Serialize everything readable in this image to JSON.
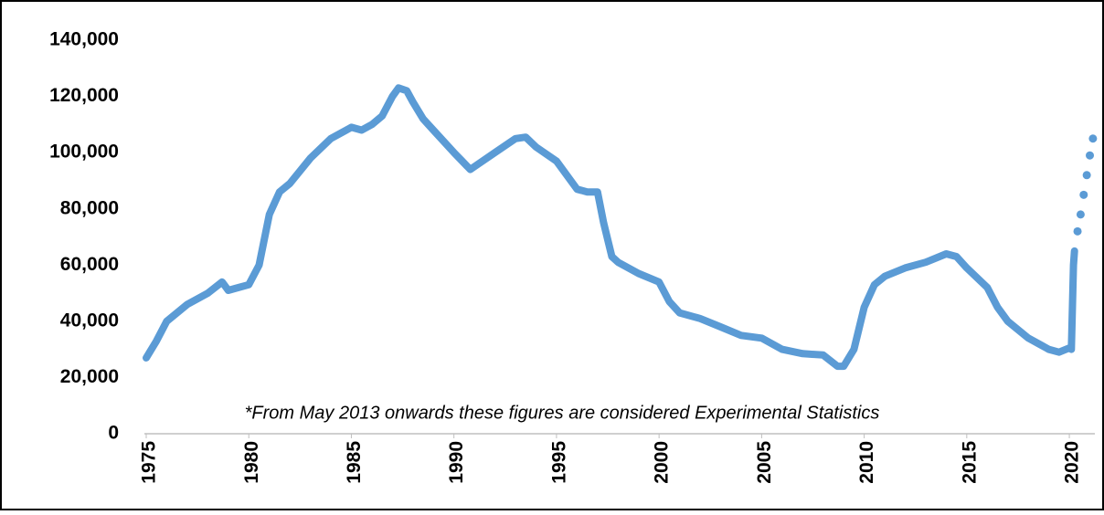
{
  "chart_data": {
    "type": "line",
    "annotation": "*From May 2013 onwards these figures are considered Experimental Statistics",
    "xlim": [
      1975,
      2021.2
    ],
    "xticks": [
      1975,
      1980,
      1985,
      1990,
      1995,
      2000,
      2005,
      2010,
      2015,
      2020
    ],
    "ylim": [
      0,
      140000
    ],
    "yticks": [
      0,
      {
        "value": 20000,
        "label": "20,000"
      },
      {
        "value": 40000,
        "label": "40,000"
      },
      {
        "value": 60000,
        "label": "60,000"
      },
      {
        "value": 80000,
        "label": "80,000"
      },
      {
        "value": 100000,
        "label": "100,000"
      },
      {
        "value": 120000,
        "label": "120,000"
      },
      {
        "value": 140000,
        "label": "140,000"
      }
    ],
    "grid": false,
    "series": [
      {
        "color": "#5b9bd5",
        "style": "solid",
        "x": [
          1975,
          1975.5,
          1976,
          1977,
          1978,
          1978.7,
          1979,
          1979.5,
          1980,
          1980.5,
          1981,
          1981.5,
          1982,
          1983,
          1984,
          1985,
          1985.5,
          1986,
          1986.5,
          1987,
          1987.3,
          1987.7,
          1988,
          1988.5,
          1989,
          1990,
          1990.8,
          1991,
          1992,
          1993,
          1993.5,
          1994,
          1995,
          1996,
          1996.5,
          1997,
          1997.3,
          1997.7,
          1998,
          1999,
          2000,
          2000.5,
          2001,
          2002,
          2003,
          2004,
          2005,
          2006,
          2007,
          2008,
          2008.7,
          2009,
          2009.5,
          2010,
          2010.5,
          2011,
          2012,
          2013,
          2014,
          2014.5,
          2015,
          2016,
          2016.5,
          2017,
          2018,
          2019,
          2019.5,
          2020,
          2020.1,
          2020.2,
          2020.25
        ],
        "values": [
          27000,
          33000,
          40000,
          46000,
          50000,
          54000,
          51000,
          52000,
          53000,
          60000,
          78000,
          86000,
          89000,
          98000,
          105000,
          109000,
          108000,
          110000,
          113000,
          120000,
          123000,
          122000,
          118000,
          112000,
          108000,
          100000,
          94000,
          95000,
          100000,
          105000,
          105500,
          102000,
          97000,
          87000,
          86000,
          86000,
          75000,
          63000,
          61000,
          57000,
          54000,
          47000,
          43000,
          41000,
          38000,
          35000,
          34000,
          30000,
          28500,
          28000,
          24000,
          24000,
          30000,
          45000,
          53000,
          56000,
          59000,
          61000,
          64000,
          63000,
          59000,
          52000,
          45000,
          40000,
          34000,
          30000,
          29000,
          30500,
          30000,
          60000,
          65000
        ]
      },
      {
        "color": "#5b9bd5",
        "style": "dots",
        "x": [
          2020.4,
          2020.55,
          2020.7,
          2020.85,
          2021.0,
          2021.15
        ],
        "values": [
          72000,
          78000,
          85000,
          92000,
          99000,
          105000
        ]
      }
    ]
  }
}
